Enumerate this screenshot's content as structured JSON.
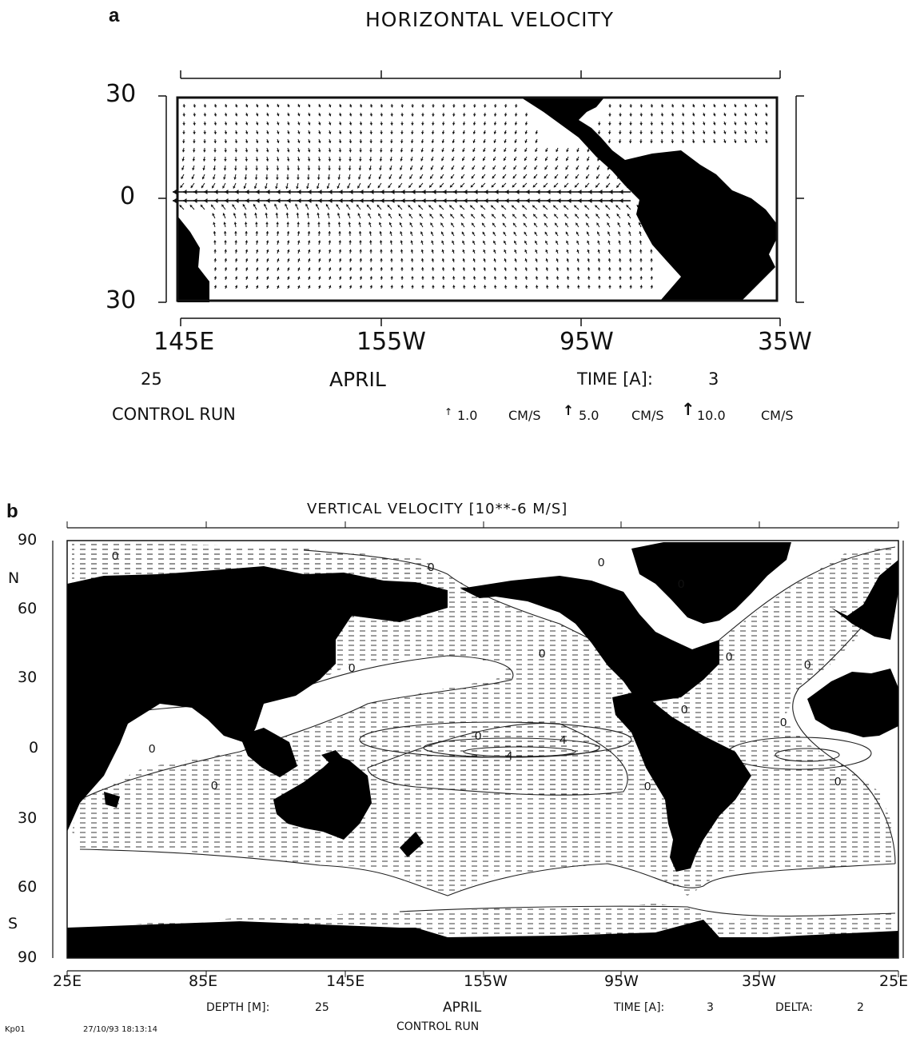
{
  "chart_data": [
    {
      "type": "vector-field",
      "panel_label": "a",
      "title": "HORIZONTAL VELOCITY",
      "x_ticks": [
        "145E",
        "155W",
        "95W",
        "35W"
      ],
      "y_ticks": [
        "30",
        "0",
        "30"
      ],
      "footer": {
        "depth": "25",
        "month": "APRIL",
        "time_label": "TIME [A]:",
        "time_value": "3",
        "run": "CONTROL RUN",
        "reference_vectors": [
          {
            "value": "1.0",
            "unit": "CM/S"
          },
          {
            "value": "5.0",
            "unit": "CM/S"
          },
          {
            "value": "10.0",
            "unit": "CM/S"
          }
        ]
      },
      "land_color": "#000000"
    },
    {
      "type": "contour",
      "panel_label": "b",
      "title": "VERTICAL VELOCITY [10**-6 M/S]",
      "x_ticks": [
        "25E",
        "85E",
        "145E",
        "155W",
        "95W",
        "35W",
        "25E"
      ],
      "y_ticks": [
        "90",
        "60",
        "30",
        "0",
        "30",
        "60",
        "90"
      ],
      "hemisphere_labels": [
        "N",
        "S"
      ],
      "contour_labels": [
        "0",
        "0",
        "0",
        "0",
        "0",
        "0",
        "0",
        "0",
        "0",
        "0",
        "0",
        "0",
        "0",
        "0",
        "0",
        "4",
        "4"
      ],
      "footer": {
        "depth_label": "DEPTH [M]:",
        "depth_value": "25",
        "month": "APRIL",
        "time_label": "TIME [A]:",
        "time_value": "3",
        "delta_label": "DELTA:",
        "delta_value": "2",
        "run": "CONTROL RUN"
      },
      "land_color": "#000000"
    }
  ],
  "stamp": {
    "id": "Kp01",
    "datetime": "27/10/93  18:13:14"
  }
}
